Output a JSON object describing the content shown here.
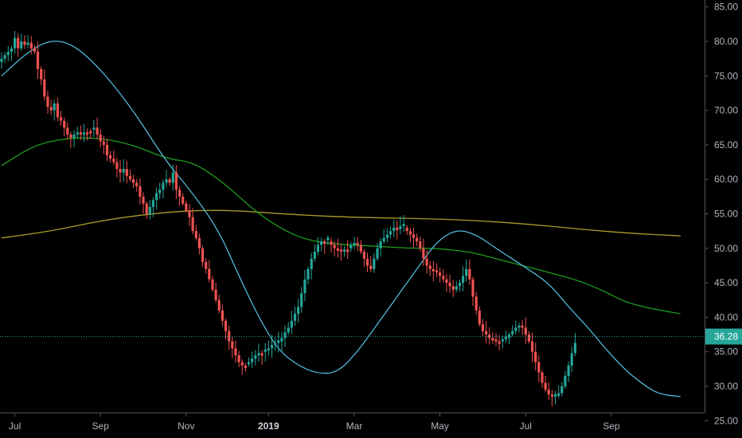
{
  "chart_data": {
    "type": "candlestick",
    "title": "",
    "xlabel": "",
    "ylabel": "",
    "ylim": [
      22.5,
      86
    ],
    "y_ticks": [
      "85.00",
      "80.00",
      "75.00",
      "70.00",
      "65.00",
      "60.00",
      "55.00",
      "50.00",
      "45.00",
      "40.00",
      "35.00",
      "30.00",
      "25.00"
    ],
    "y_tick_values": [
      85,
      80,
      75,
      70,
      65,
      60,
      55,
      50,
      45,
      40,
      35,
      30,
      25
    ],
    "x_ticks": [
      {
        "label": "Jul",
        "index": 4
      },
      {
        "label": "Sep",
        "index": 30
      },
      {
        "label": "Nov",
        "index": 56
      },
      {
        "label": "2019",
        "index": 81
      },
      {
        "label": "Mar",
        "index": 107
      },
      {
        "label": "May",
        "index": 133
      },
      {
        "label": "Jul",
        "index": 159
      },
      {
        "label": "Sep",
        "index": 185
      }
    ],
    "x_count": 200,
    "grid": false,
    "current_price": {
      "value": 36.28,
      "label": "36.28",
      "color": "#26a69a"
    },
    "colors": {
      "up": "#26a69a",
      "down": "#ef5350",
      "ma_fast": "#4fb8d9",
      "ma_mid": "#1f9a1f",
      "ma_slow": "#a89a2a",
      "axis_text": "#b2b5be",
      "axis_line": "#555555"
    },
    "ohlc_closes": [
      77.5,
      78,
      78.5,
      79,
      80.5,
      79,
      80,
      79.5,
      79.8,
      79,
      78.5,
      76,
      74.5,
      72,
      70.5,
      70,
      71,
      69,
      68.5,
      67.5,
      66.5,
      66,
      66.5,
      66.8,
      66.5,
      66.8,
      67,
      67.2,
      67.5,
      66.5,
      65.5,
      65,
      63.5,
      63,
      62.5,
      61.5,
      61,
      61.5,
      60.5,
      60,
      59.5,
      59,
      57.5,
      56.5,
      55,
      56,
      57,
      58,
      58.5,
      59.5,
      60,
      59.5,
      61,
      58.5,
      57.5,
      56.5,
      55.5,
      54.5,
      52.5,
      51.5,
      50,
      48,
      47,
      45.5,
      44,
      42.5,
      41,
      39.5,
      38,
      36.5,
      35.5,
      34.5,
      33.5,
      33,
      33.2,
      33.5,
      34,
      34.5,
      34.8,
      35,
      35.2,
      35.5,
      36,
      36.3,
      36.5,
      37,
      37.8,
      38.5,
      39.5,
      40.5,
      41.5,
      43.5,
      45.5,
      47,
      48.5,
      49.5,
      50.5,
      51,
      51.2,
      51,
      50.5,
      50,
      49.8,
      49.5,
      49.8,
      50,
      50.5,
      50.8,
      50.5,
      49.5,
      48.5,
      47.5,
      47,
      48.5,
      50,
      51,
      51.5,
      52,
      52.5,
      53,
      52.8,
      53.2,
      53,
      52.5,
      52,
      51.5,
      51,
      50,
      48.5,
      47.5,
      47,
      46.8,
      46.5,
      46,
      45.5,
      45,
      44.5,
      44,
      44.5,
      45,
      46,
      47,
      45.5,
      43,
      41,
      39,
      38,
      37.5,
      37,
      36.8,
      36.5,
      36.5,
      36.8,
      37,
      37.5,
      38,
      38.5,
      38.8,
      38.5,
      37.5,
      36.5,
      35,
      33.5,
      32,
      30.5,
      29.5,
      28.8,
      28.5,
      28.6,
      29,
      30,
      31.5,
      33,
      34.8,
      36.28
    ],
    "ma_fast_points": [
      [
        0,
        75
      ],
      [
        8,
        78.5
      ],
      [
        15,
        80.3
      ],
      [
        22,
        79.5
      ],
      [
        30,
        76
      ],
      [
        40,
        70
      ],
      [
        50,
        62.5
      ],
      [
        58,
        58
      ],
      [
        66,
        52.5
      ],
      [
        72,
        46
      ],
      [
        78,
        40
      ],
      [
        84,
        35.2
      ],
      [
        90,
        33
      ],
      [
        96,
        31.8
      ],
      [
        102,
        32
      ],
      [
        108,
        35
      ],
      [
        114,
        39
      ],
      [
        120,
        43
      ],
      [
        126,
        47
      ],
      [
        132,
        51
      ],
      [
        138,
        52.8
      ],
      [
        144,
        52
      ],
      [
        150,
        50
      ],
      [
        158,
        47.5
      ],
      [
        166,
        45
      ],
      [
        172,
        41.5
      ],
      [
        178,
        38.5
      ],
      [
        184,
        35
      ],
      [
        190,
        32
      ],
      [
        196,
        29.8
      ],
      [
        200,
        28.8
      ],
      [
        206,
        28.5
      ]
    ],
    "ma_mid_points": [
      [
        0,
        62
      ],
      [
        10,
        65
      ],
      [
        20,
        66
      ],
      [
        30,
        66
      ],
      [
        40,
        65
      ],
      [
        50,
        63
      ],
      [
        58,
        62.5
      ],
      [
        66,
        60
      ],
      [
        72,
        57.5
      ],
      [
        78,
        55
      ],
      [
        86,
        52.5
      ],
      [
        94,
        51
      ],
      [
        104,
        50.5
      ],
      [
        114,
        50.3
      ],
      [
        124,
        50
      ],
      [
        132,
        50
      ],
      [
        142,
        49.5
      ],
      [
        150,
        48.5
      ],
      [
        158,
        47.5
      ],
      [
        166,
        46.5
      ],
      [
        174,
        45.5
      ],
      [
        182,
        44
      ],
      [
        190,
        42
      ],
      [
        200,
        41
      ],
      [
        206,
        40.5
      ]
    ],
    "ma_slow_points": [
      [
        0,
        51.5
      ],
      [
        15,
        52.5
      ],
      [
        30,
        54
      ],
      [
        45,
        55
      ],
      [
        58,
        55.5
      ],
      [
        70,
        55.5
      ],
      [
        85,
        55
      ],
      [
        100,
        54.6
      ],
      [
        115,
        54.4
      ],
      [
        130,
        54.3
      ],
      [
        145,
        54
      ],
      [
        160,
        53.5
      ],
      [
        175,
        52.8
      ],
      [
        190,
        52.2
      ],
      [
        206,
        51.8
      ]
    ]
  }
}
